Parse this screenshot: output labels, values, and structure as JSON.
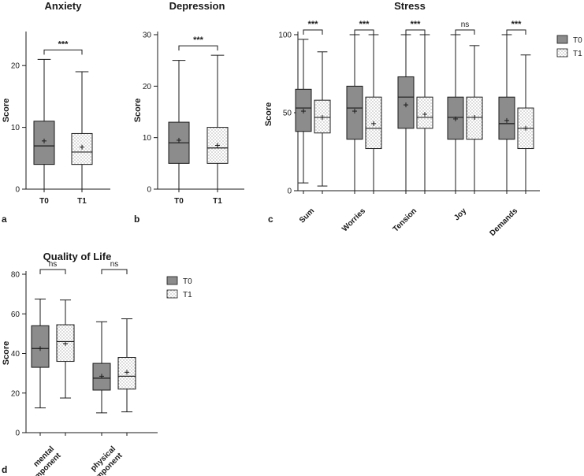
{
  "colors": {
    "t0_fill": "#8c8c8c",
    "t1_fill": "#ffffff",
    "line": "#1a1a1a"
  },
  "chart_data": [
    {
      "panel": "a",
      "type": "box",
      "title": "Anxiety",
      "ylabel": "Score",
      "ylim": [
        0,
        25
      ],
      "yticks": [
        "0",
        "10",
        "20"
      ],
      "ytick_values": [
        0,
        10,
        20
      ],
      "categories": [
        "T0",
        "T1"
      ],
      "boxes": [
        {
          "group": "T0",
          "min": 0,
          "q1": 4,
          "median": 7,
          "q3": 11,
          "max": 21,
          "mean": 7.8
        },
        {
          "group": "T1",
          "min": 0,
          "q1": 4,
          "median": 6,
          "q3": 9,
          "max": 19,
          "mean": 6.8
        }
      ],
      "significance": [
        {
          "label": "***",
          "from": 0,
          "to": 1
        }
      ]
    },
    {
      "panel": "b",
      "type": "box",
      "title": "Depression",
      "ylabel": "Score",
      "ylim": [
        0,
        30
      ],
      "yticks": [
        "0",
        "10",
        "20",
        "30"
      ],
      "ytick_values": [
        0,
        10,
        20,
        30
      ],
      "categories": [
        "T0",
        "T1"
      ],
      "boxes": [
        {
          "group": "T0",
          "min": 0,
          "q1": 5,
          "median": 9,
          "q3": 13,
          "max": 25,
          "mean": 9.5
        },
        {
          "group": "T1",
          "min": 0,
          "q1": 5,
          "median": 8,
          "q3": 12,
          "max": 26,
          "mean": 8.5
        }
      ],
      "significance": [
        {
          "label": "***",
          "from": 0,
          "to": 1
        }
      ]
    },
    {
      "panel": "c",
      "type": "box",
      "title": "Stress",
      "ylabel": "Score",
      "ylim": [
        0,
        100
      ],
      "yticks": [
        "0",
        "50",
        "100"
      ],
      "ytick_values": [
        0,
        50,
        100
      ],
      "categories": [
        "Sum",
        "Worries",
        "Tension",
        "Joy",
        "Demands"
      ],
      "legend": [
        "T0",
        "T1"
      ],
      "boxes": [
        {
          "cat": 0,
          "group": "T0",
          "min": 5,
          "q1": 38,
          "median": 53,
          "q3": 65,
          "max": 97,
          "mean": 51
        },
        {
          "cat": 0,
          "group": "T1",
          "min": 3,
          "q1": 37,
          "median": 47,
          "q3": 58,
          "max": 89,
          "mean": 47
        },
        {
          "cat": 1,
          "group": "T0",
          "min": 0,
          "q1": 33,
          "median": 53,
          "q3": 67,
          "max": 100,
          "mean": 51
        },
        {
          "cat": 1,
          "group": "T1",
          "min": 0,
          "q1": 27,
          "median": 40,
          "q3": 60,
          "max": 100,
          "mean": 43
        },
        {
          "cat": 2,
          "group": "T0",
          "min": 0,
          "q1": 40,
          "median": 60,
          "q3": 73,
          "max": 100,
          "mean": 55
        },
        {
          "cat": 2,
          "group": "T1",
          "min": 0,
          "q1": 40,
          "median": 47,
          "q3": 60,
          "max": 100,
          "mean": 49
        },
        {
          "cat": 3,
          "group": "T0",
          "min": 0,
          "q1": 33,
          "median": 47,
          "q3": 60,
          "max": 100,
          "mean": 46
        },
        {
          "cat": 3,
          "group": "T1",
          "min": 0,
          "q1": 33,
          "median": 47,
          "q3": 60,
          "max": 93,
          "mean": 47
        },
        {
          "cat": 4,
          "group": "T0",
          "min": 0,
          "q1": 33,
          "median": 43,
          "q3": 60,
          "max": 100,
          "mean": 45
        },
        {
          "cat": 4,
          "group": "T1",
          "min": 0,
          "q1": 27,
          "median": 40,
          "q3": 53,
          "max": 87,
          "mean": 40
        }
      ],
      "significance": [
        {
          "label": "***",
          "cat": 0
        },
        {
          "label": "***",
          "cat": 1
        },
        {
          "label": "***",
          "cat": 2
        },
        {
          "label": "ns",
          "cat": 3
        },
        {
          "label": "***",
          "cat": 4
        }
      ]
    },
    {
      "panel": "d",
      "type": "box",
      "title": "Quality of Life",
      "ylabel": "Score",
      "ylim": [
        0,
        80
      ],
      "yticks": [
        "0",
        "20",
        "40",
        "60",
        "80"
      ],
      "ytick_values": [
        0,
        20,
        40,
        60,
        80
      ],
      "categories": [
        [
          "mental",
          "component"
        ],
        [
          "physical",
          "component"
        ]
      ],
      "legend": [
        "T0",
        "T1"
      ],
      "boxes": [
        {
          "cat": 0,
          "group": "T0",
          "min": 12.5,
          "q1": 33,
          "median": 42.5,
          "q3": 54,
          "max": 67.5,
          "mean": 42.5
        },
        {
          "cat": 0,
          "group": "T1",
          "min": 17.5,
          "q1": 36,
          "median": 46,
          "q3": 54.5,
          "max": 67,
          "mean": 45
        },
        {
          "cat": 1,
          "group": "T0",
          "min": 10,
          "q1": 21.5,
          "median": 27.5,
          "q3": 35,
          "max": 56,
          "mean": 28.5
        },
        {
          "cat": 1,
          "group": "T1",
          "min": 10.5,
          "q1": 22,
          "median": 28.5,
          "q3": 38,
          "max": 57.5,
          "mean": 30.5
        }
      ],
      "significance": [
        {
          "label": "ns",
          "cat": 0
        },
        {
          "label": "ns",
          "cat": 1
        }
      ]
    }
  ]
}
